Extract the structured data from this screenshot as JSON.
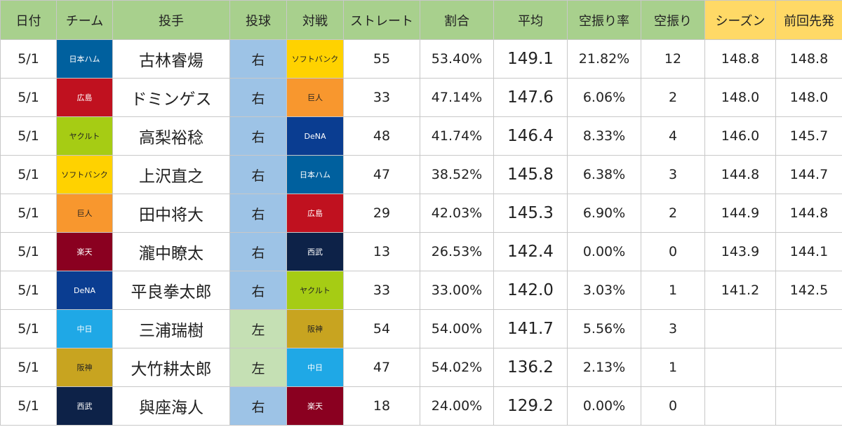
{
  "colors": {
    "header_green": "#a8d08d",
    "header_yellow": "#ffd966",
    "hand_right": "#9dc3e6",
    "hand_left": "#c5e0b4"
  },
  "header": [
    "日付",
    "チーム",
    "投手",
    "投球",
    "対戦",
    "ストレート",
    "割合",
    "平均",
    "空振り率",
    "空振り",
    "シーズン",
    "前回先発"
  ],
  "teams": {
    "日本ハム": {
      "bg": "#00609e",
      "fg": "#ffffff"
    },
    "ソフトバンク": {
      "bg": "#ffd200",
      "fg": "#222222"
    },
    "広島": {
      "bg": "#c0111f",
      "fg": "#ffffff"
    },
    "巨人": {
      "bg": "#f8972e",
      "fg": "#222222"
    },
    "ヤクルト": {
      "bg": "#a6cc14",
      "fg": "#222222"
    },
    "DeNA": {
      "bg": "#0a3d91",
      "fg": "#ffffff"
    },
    "楽天": {
      "bg": "#8a0020",
      "fg": "#ffffff"
    },
    "西武": {
      "bg": "#0d2248",
      "fg": "#ffffff"
    },
    "中日": {
      "bg": "#1fa8e6",
      "fg": "#ffffff"
    },
    "阪神": {
      "bg": "#c8a420",
      "fg": "#222222"
    }
  },
  "rows": [
    {
      "date": "5/1",
      "team": "日本ハム",
      "pitcher": "古林睿煬",
      "hand": "右",
      "opponent": "ソフトバンク",
      "straight": "55",
      "ratio": "53.40%",
      "avg": "149.1",
      "whiff_rate": "21.82%",
      "whiffs": "12",
      "season": "148.8",
      "prev": "148.8"
    },
    {
      "date": "5/1",
      "team": "広島",
      "pitcher": "ドミンゲス",
      "hand": "右",
      "opponent": "巨人",
      "straight": "33",
      "ratio": "47.14%",
      "avg": "147.6",
      "whiff_rate": "6.06%",
      "whiffs": "2",
      "season": "148.0",
      "prev": "148.0"
    },
    {
      "date": "5/1",
      "team": "ヤクルト",
      "pitcher": "高梨裕稔",
      "hand": "右",
      "opponent": "DeNA",
      "straight": "48",
      "ratio": "41.74%",
      "avg": "146.4",
      "whiff_rate": "8.33%",
      "whiffs": "4",
      "season": "146.0",
      "prev": "145.7"
    },
    {
      "date": "5/1",
      "team": "ソフトバンク",
      "pitcher": "上沢直之",
      "hand": "右",
      "opponent": "日本ハム",
      "straight": "47",
      "ratio": "38.52%",
      "avg": "145.8",
      "whiff_rate": "6.38%",
      "whiffs": "3",
      "season": "144.8",
      "prev": "144.7"
    },
    {
      "date": "5/1",
      "team": "巨人",
      "pitcher": "田中将大",
      "hand": "右",
      "opponent": "広島",
      "straight": "29",
      "ratio": "42.03%",
      "avg": "145.3",
      "whiff_rate": "6.90%",
      "whiffs": "2",
      "season": "144.9",
      "prev": "144.8"
    },
    {
      "date": "5/1",
      "team": "楽天",
      "pitcher": "瀧中瞭太",
      "hand": "右",
      "opponent": "西武",
      "straight": "13",
      "ratio": "26.53%",
      "avg": "142.4",
      "whiff_rate": "0.00%",
      "whiffs": "0",
      "season": "143.9",
      "prev": "144.1"
    },
    {
      "date": "5/1",
      "team": "DeNA",
      "pitcher": "平良拳太郎",
      "hand": "右",
      "opponent": "ヤクルト",
      "straight": "33",
      "ratio": "33.00%",
      "avg": "142.0",
      "whiff_rate": "3.03%",
      "whiffs": "1",
      "season": "141.2",
      "prev": "142.5"
    },
    {
      "date": "5/1",
      "team": "中日",
      "pitcher": "三浦瑞樹",
      "hand": "左",
      "opponent": "阪神",
      "straight": "54",
      "ratio": "54.00%",
      "avg": "141.7",
      "whiff_rate": "5.56%",
      "whiffs": "3",
      "season": "",
      "prev": ""
    },
    {
      "date": "5/1",
      "team": "阪神",
      "pitcher": "大竹耕太郎",
      "hand": "左",
      "opponent": "中日",
      "straight": "47",
      "ratio": "54.02%",
      "avg": "136.2",
      "whiff_rate": "2.13%",
      "whiffs": "1",
      "season": "",
      "prev": ""
    },
    {
      "date": "5/1",
      "team": "西武",
      "pitcher": "與座海人",
      "hand": "右",
      "opponent": "楽天",
      "straight": "18",
      "ratio": "24.00%",
      "avg": "129.2",
      "whiff_rate": "0.00%",
      "whiffs": "0",
      "season": "",
      "prev": ""
    }
  ]
}
